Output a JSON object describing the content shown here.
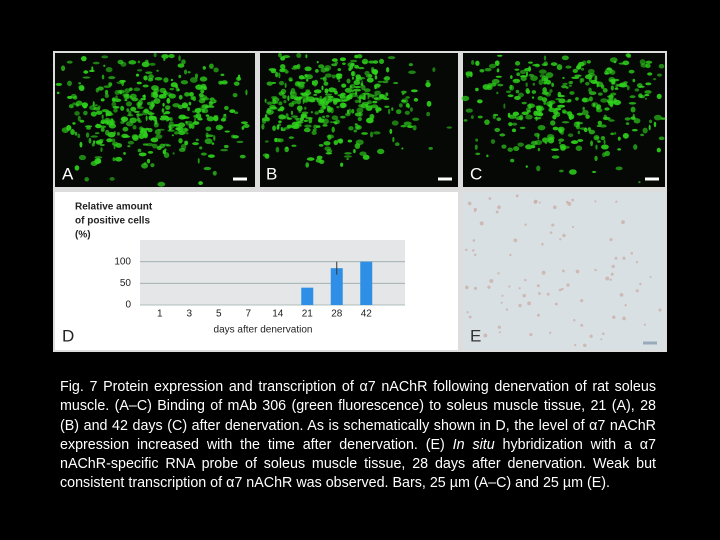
{
  "panels": {
    "a": "A",
    "b": "B",
    "c": "C",
    "d": "D",
    "e": "E"
  },
  "chart_data": {
    "type": "bar",
    "title": [
      "Relative amount",
      "of positive cells",
      "(%)"
    ],
    "x_label": "days after denervation",
    "categories": [
      "1",
      "3",
      "5",
      "7",
      "14",
      "21",
      "28",
      "42"
    ],
    "values": [
      0,
      0,
      0,
      0,
      0,
      40,
      85,
      100
    ],
    "errors": [
      null,
      null,
      null,
      null,
      null,
      null,
      15,
      null
    ],
    "color": "#2f8fe6",
    "ylim": [
      0,
      150
    ],
    "yticks": [
      0,
      50,
      100
    ],
    "grid": true
  },
  "caption": {
    "before": "Fig. 7  Protein expression and transcription of α7 nAChR following denervation of rat soleus muscle. (A–C) Binding of mAb 306 (green fluorescence) to soleus muscle tissue, 21 (A), 28 (B) and 42 days (C) after denervation. As is schematically shown in D, the level of α7 nAChR expression increased with the time after denervation. (E) ",
    "italic": "In situ",
    "after": " hybridization with a α7 nAChR-specific RNA probe of soleus muscle tissue, 28 days after denervation. Weak but consistent transcription of α7 nAChR was observed. Bars, 25 µm (A–C) and 25 µm (E)."
  }
}
